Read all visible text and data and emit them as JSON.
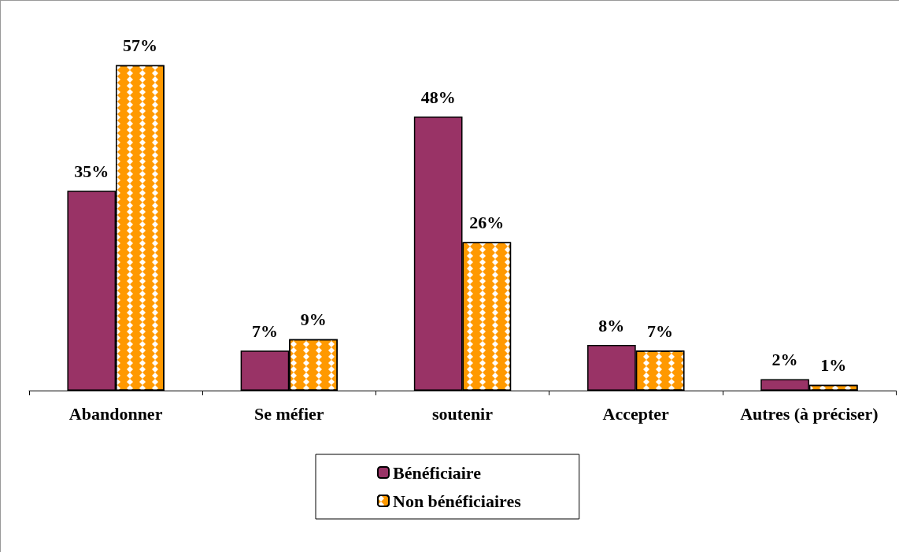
{
  "chart_data": {
    "type": "bar",
    "categories": [
      "Abandonner",
      "Se méfier",
      "soutenir",
      "Accepter",
      "Autres (à préciser)"
    ],
    "series": [
      {
        "name": "Bénéficiaire",
        "color": "#993366",
        "values": [
          35,
          7,
          48,
          8,
          2
        ],
        "value_labels": [
          "35%",
          "7%",
          "48%",
          "8%",
          "2%"
        ]
      },
      {
        "name": "Non bénéficiaires",
        "color": "#ff9900",
        "values": [
          57,
          9,
          26,
          7,
          1
        ],
        "value_labels": [
          "57%",
          "9%",
          "26%",
          "7%",
          "1%"
        ]
      }
    ],
    "legend": "bottom",
    "grid": false
  }
}
